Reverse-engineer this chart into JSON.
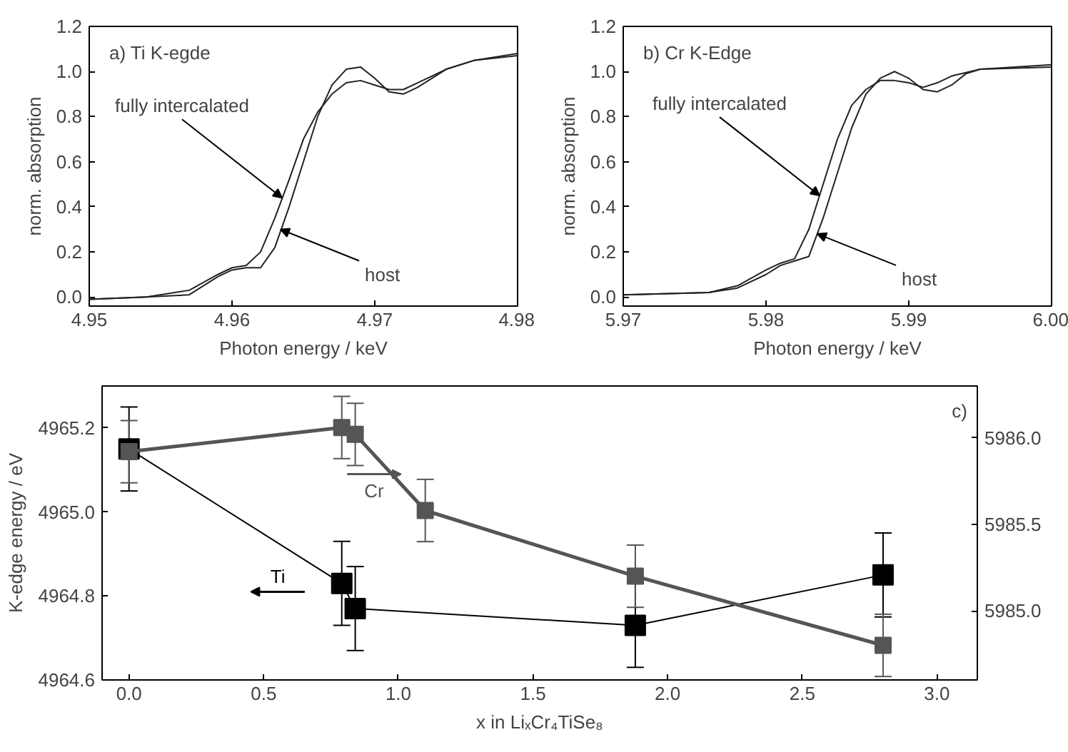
{
  "chart_data": [
    {
      "type": "line",
      "title": "a) Ti K-egde",
      "xlabel": "Photon energy / keV",
      "ylabel": "norm. absorption",
      "xlim": [
        4.95,
        4.98
      ],
      "ylim": [
        -0.04,
        1.2
      ],
      "xticks": [
        4.95,
        4.96,
        4.97,
        4.98
      ],
      "yticks": [
        {
          "value": 0,
          "label": "0.0"
        },
        0.2,
        0.4,
        0.6,
        0.8,
        {
          "value": 1,
          "label": "1.0"
        },
        1.2
      ],
      "grid": false,
      "line_style": "solid",
      "marker": "none",
      "annotations": [
        {
          "text": "fully intercalated",
          "x": 4.9635,
          "y": 0.44
        },
        {
          "text": "host",
          "x": 4.9634,
          "y": 0.3
        }
      ],
      "series": [
        {
          "color": "#222222",
          "x": [
            4.95,
            4.954,
            4.957,
            4.959,
            4.96,
            4.961,
            4.962,
            4.963,
            4.964,
            4.965,
            4.966,
            4.967,
            4.968,
            4.969,
            4.97,
            4.971,
            4.972,
            4.973,
            4.975,
            4.977,
            4.98
          ],
          "values": [
            -0.01,
            0.0,
            0.03,
            0.1,
            0.13,
            0.14,
            0.2,
            0.35,
            0.52,
            0.7,
            0.82,
            0.9,
            0.95,
            0.96,
            0.94,
            0.92,
            0.92,
            0.95,
            1.01,
            1.05,
            1.07
          ]
        },
        {
          "color": "#222222",
          "x": [
            4.95,
            4.954,
            4.957,
            4.959,
            4.96,
            4.961,
            4.962,
            4.963,
            4.964,
            4.965,
            4.966,
            4.967,
            4.968,
            4.969,
            4.97,
            4.971,
            4.972,
            4.973,
            4.975,
            4.977,
            4.98
          ],
          "values": [
            -0.01,
            0.0,
            0.01,
            0.09,
            0.12,
            0.13,
            0.13,
            0.22,
            0.4,
            0.6,
            0.8,
            0.94,
            1.01,
            1.02,
            0.97,
            0.91,
            0.9,
            0.93,
            1.01,
            1.05,
            1.08
          ]
        }
      ]
    },
    {
      "type": "line",
      "title": "b) Cr K-Edge",
      "xlabel": "Photon energy / keV",
      "ylabel": "norm. absorption",
      "xlim": [
        5.97,
        6.0
      ],
      "ylim": [
        -0.04,
        1.2
      ],
      "xticks": [
        5.97,
        5.98,
        5.99,
        {
          "value": 6.0,
          "label": "6.00"
        }
      ],
      "yticks": [
        {
          "value": 0,
          "label": "0.0"
        },
        0.2,
        0.4,
        0.6,
        0.8,
        {
          "value": 1,
          "label": "1.0"
        },
        1.2
      ],
      "grid": false,
      "line_style": "solid",
      "marker": "none",
      "annotations": [
        {
          "text": "fully intercalated",
          "x": 5.98375,
          "y": 0.45
        },
        {
          "text": "host",
          "x": 5.9836,
          "y": 0.28
        }
      ],
      "series": [
        {
          "color": "#222222",
          "x": [
            5.97,
            5.976,
            5.978,
            5.98,
            5.981,
            5.982,
            5.983,
            5.984,
            5.985,
            5.986,
            5.987,
            5.988,
            5.989,
            5.99,
            5.991,
            5.992,
            5.993,
            5.995,
            6.0
          ],
          "values": [
            0.01,
            0.02,
            0.05,
            0.12,
            0.15,
            0.17,
            0.3,
            0.5,
            0.7,
            0.85,
            0.92,
            0.96,
            0.96,
            0.95,
            0.93,
            0.95,
            0.98,
            1.01,
            1.02
          ]
        },
        {
          "color": "#222222",
          "x": [
            5.97,
            5.976,
            5.978,
            5.98,
            5.981,
            5.982,
            5.983,
            5.984,
            5.985,
            5.986,
            5.987,
            5.988,
            5.989,
            5.99,
            5.991,
            5.992,
            5.993,
            5.994,
            5.995,
            6.0
          ],
          "values": [
            0.01,
            0.02,
            0.04,
            0.1,
            0.14,
            0.16,
            0.18,
            0.35,
            0.55,
            0.75,
            0.9,
            0.97,
            1.0,
            0.97,
            0.92,
            0.91,
            0.94,
            0.99,
            1.01,
            1.03
          ]
        }
      ]
    },
    {
      "type": "line",
      "xlabel": "x in LiₓCr₄TiSe₈",
      "ylabel": "K-edge energy / eV",
      "xlim": [
        -0.1,
        3.15
      ],
      "ylim": [
        4964.6,
        4965.3
      ],
      "y2lim": [
        5984.6,
        5986.3
      ],
      "xticks": [
        {
          "value": 0,
          "label": "0.0"
        },
        0.5,
        {
          "value": 1,
          "label": "1.0"
        },
        1.5,
        {
          "value": 2,
          "label": "2.0"
        },
        2.5,
        {
          "value": 3,
          "label": "3.0"
        }
      ],
      "yticks": [
        4964.6,
        4964.8,
        {
          "value": 4965,
          "label": "4965.0"
        },
        4965.2
      ],
      "y2ticks": [
        {
          "value": 5985,
          "label": "5985.0"
        },
        5985.5,
        {
          "value": 5986,
          "label": "5986.0"
        }
      ],
      "grid": false,
      "marker": "square",
      "line_style": "solid",
      "annotations": [
        "c)"
      ],
      "series": [
        {
          "name": "Ti",
          "color": "#000000",
          "x": [
            0,
            0.79,
            0.84,
            1.88,
            2.8
          ],
          "values": [
            4965.15,
            4964.83,
            4964.77,
            4964.73,
            4964.85
          ],
          "errors": [
            0.1,
            0.1,
            0.1,
            0.1,
            0.1
          ]
        },
        {
          "name": "Cr",
          "color": "#555555",
          "axis": "y2",
          "x": [
            0,
            0.79,
            0.84,
            1.1,
            1.88,
            2.8
          ],
          "values": [
            5985.92,
            5986.06,
            5986.02,
            5985.58,
            5985.2,
            5984.8
          ],
          "errors": [
            0.18,
            0.18,
            0.18,
            0.18,
            0.18,
            0.18
          ]
        }
      ]
    }
  ]
}
